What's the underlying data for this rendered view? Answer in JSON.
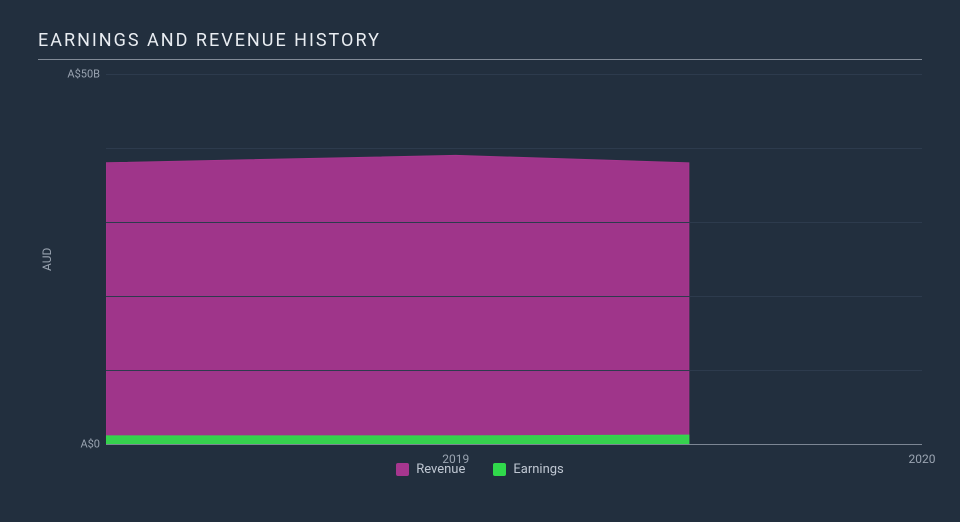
{
  "chart": {
    "type": "area",
    "title": "EARNINGS AND REVENUE HISTORY",
    "title_fontsize": 18,
    "title_color": "#e9edf2",
    "background_color": "#222f3e",
    "plot_background_color": "#263445",
    "grid_color": "#2d3b4d",
    "axis_line_color": "#7c8694",
    "label_color": "#9aa4b1",
    "y_axis": {
      "title": "AUD",
      "min": 0,
      "max": 50,
      "unit": "B",
      "currency_prefix": "A$",
      "tick_values": [
        0,
        50
      ],
      "tick_labels": {
        "0": "A$0",
        "50": "A$50B"
      },
      "grid_values": [
        0,
        10,
        20,
        30,
        40,
        50
      ]
    },
    "x_axis": {
      "min": 2018.25,
      "max": 2020.0,
      "tick_values": [
        2019,
        2020
      ],
      "tick_labels": {
        "2019": "2019",
        "2020": "2020"
      }
    },
    "series": [
      {
        "name": "Revenue",
        "color": "#a6368e",
        "fill_opacity": 0.95,
        "points": [
          {
            "x": 2018.25,
            "y": 38.0
          },
          {
            "x": 2019.0,
            "y": 39.0
          },
          {
            "x": 2019.5,
            "y": 38.0
          },
          {
            "x": 2019.5,
            "y": 0.0
          }
        ]
      },
      {
        "name": "Earnings",
        "color": "#30d94b",
        "fill_opacity": 0.95,
        "points": [
          {
            "x": 2018.25,
            "y": 1.1
          },
          {
            "x": 2019.0,
            "y": 1.1
          },
          {
            "x": 2019.5,
            "y": 1.2
          },
          {
            "x": 2019.5,
            "y": 0.0
          }
        ]
      }
    ],
    "legend": {
      "items": [
        {
          "label": "Revenue",
          "color": "#a6368e"
        },
        {
          "label": "Earnings",
          "color": "#30d94b"
        }
      ]
    }
  }
}
